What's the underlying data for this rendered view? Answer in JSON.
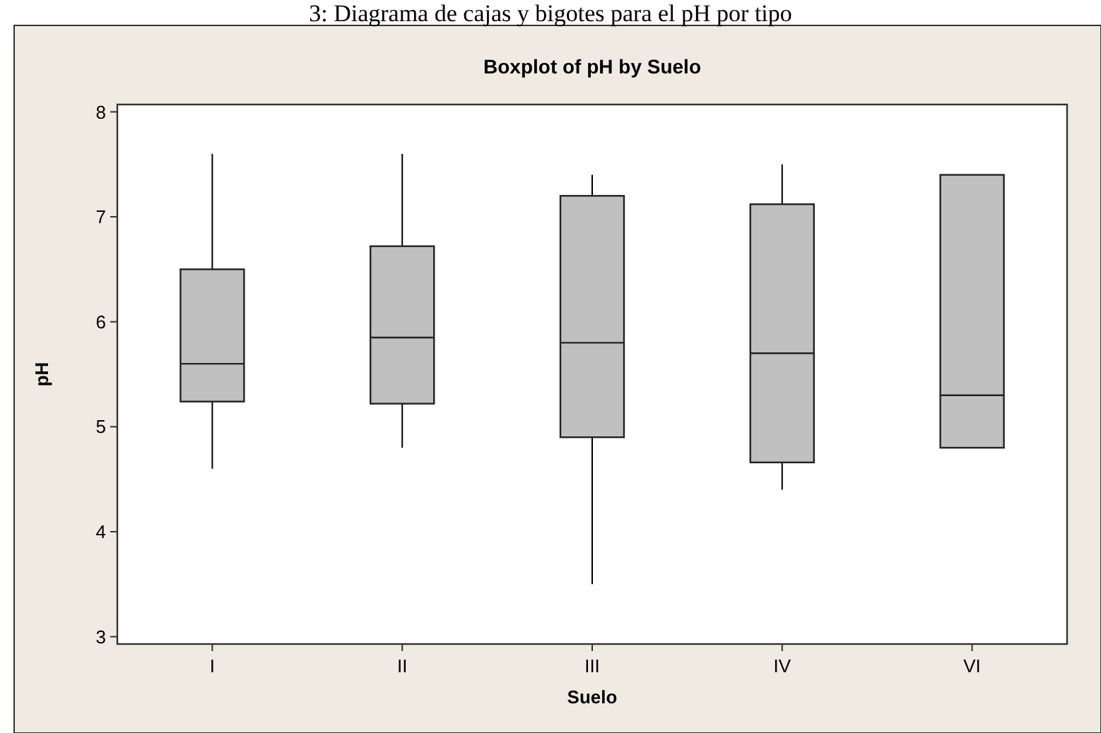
{
  "chart_data": {
    "type": "box",
    "title": "Boxplot of pH by Suelo",
    "xlabel": "Suelo",
    "ylabel": "pH",
    "annotations": [
      "3: Diagrama de cajas y bigotes para el pH por tipo"
    ],
    "categories": [
      "I",
      "II",
      "III",
      "IV",
      "VI"
    ],
    "boxes": [
      {
        "low": 4.6,
        "q1": 5.24,
        "median": 5.6,
        "q3": 6.5,
        "high": 7.6
      },
      {
        "low": 4.8,
        "q1": 5.22,
        "median": 5.85,
        "q3": 6.72,
        "high": 7.6
      },
      {
        "low": 3.5,
        "q1": 4.9,
        "median": 5.8,
        "q3": 7.2,
        "high": 7.4
      },
      {
        "low": 4.4,
        "q1": 4.66,
        "median": 5.7,
        "q3": 7.12,
        "high": 7.5
      },
      {
        "low": 4.8,
        "q1": 4.8,
        "median": 5.3,
        "q3": 7.4,
        "high": 7.4
      }
    ],
    "color": "#c0c0c0",
    "ylim": [
      2.93,
      8.07
    ],
    "yticks": [
      3,
      4,
      5,
      6,
      7,
      8
    ],
    "grid": false
  }
}
